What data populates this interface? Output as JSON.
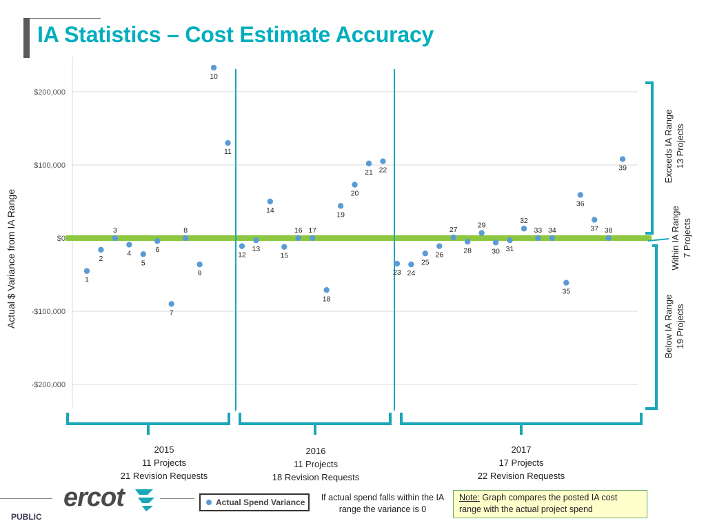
{
  "title": "IA Statistics – Cost Estimate Accuracy",
  "chart_data": {
    "type": "scatter",
    "title": "IA Statistics – Cost Estimate Accuracy",
    "ylabel": "Actual $ Variance from IA Range",
    "ylim": [
      -250000,
      245000
    ],
    "yticks": [
      200000,
      100000,
      0,
      -100000,
      -200000
    ],
    "ytick_labels": [
      "$200,000",
      "$100,000",
      "$0",
      "-$100,000",
      "-$200,000"
    ],
    "legend": "Actual Spend Variance",
    "series": [
      {
        "name": "Actual Spend Variance",
        "points": [
          {
            "id": "1",
            "y": -45000
          },
          {
            "id": "2",
            "y": -16000
          },
          {
            "id": "3",
            "y": 0
          },
          {
            "id": "4",
            "y": -9000
          },
          {
            "id": "5",
            "y": -22000
          },
          {
            "id": "6",
            "y": -4000
          },
          {
            "id": "7",
            "y": -90000
          },
          {
            "id": "8",
            "y": 0
          },
          {
            "id": "9",
            "y": -36000
          },
          {
            "id": "10",
            "y": 233000
          },
          {
            "id": "11",
            "y": 130000
          },
          {
            "id": "12",
            "y": -11000
          },
          {
            "id": "13",
            "y": -3000
          },
          {
            "id": "14",
            "y": 50000
          },
          {
            "id": "15",
            "y": -12000
          },
          {
            "id": "16",
            "y": 0
          },
          {
            "id": "17",
            "y": 0
          },
          {
            "id": "18",
            "y": -71000
          },
          {
            "id": "19",
            "y": 44000
          },
          {
            "id": "20",
            "y": 73000
          },
          {
            "id": "21",
            "y": 102000
          },
          {
            "id": "22",
            "y": 105000
          },
          {
            "id": "23",
            "y": -35000
          },
          {
            "id": "24",
            "y": -36000
          },
          {
            "id": "25",
            "y": -21000
          },
          {
            "id": "26",
            "y": -11000
          },
          {
            "id": "27",
            "y": 1000
          },
          {
            "id": "28",
            "y": -5000
          },
          {
            "id": "29",
            "y": 7000
          },
          {
            "id": "30",
            "y": -6000
          },
          {
            "id": "31",
            "y": -3000
          },
          {
            "id": "32",
            "y": 13000
          },
          {
            "id": "33",
            "y": 0
          },
          {
            "id": "34",
            "y": 0
          },
          {
            "id": "35",
            "y": -61000
          },
          {
            "id": "36",
            "y": 59000
          },
          {
            "id": "37",
            "y": 25000
          },
          {
            "id": "38",
            "y": 0
          },
          {
            "id": "39",
            "y": 108000
          }
        ]
      }
    ],
    "within_range_band": 0,
    "periods": [
      {
        "year": "2015",
        "projects": "11 Projects",
        "requests": "21 Revision Requests",
        "from": "1",
        "to": "11"
      },
      {
        "year": "2016",
        "projects": "11 Projects",
        "requests": "18 Revision Requests",
        "from": "12",
        "to": "22"
      },
      {
        "year": "2017",
        "projects": "17 Projects",
        "requests": "22 Revision Requests",
        "from": "23",
        "to": "39"
      }
    ]
  },
  "ranges": {
    "exceeds": {
      "label": "Exceeds IA Range",
      "count": "13 Projects"
    },
    "within": {
      "label": "Within IA Range",
      "count": "7 Projects"
    },
    "below": {
      "label": "Below IA Range",
      "count": "19 Projects"
    }
  },
  "footer": {
    "logo_text": "ercot",
    "classification": "PUBLIC",
    "legend_label": "Actual Spend Variance",
    "note_left": "If actual spend falls within the IA range the variance is 0",
    "note_label": "Note:",
    "note_text": " Graph compares the posted IA cost range with the actual project spend"
  },
  "colors": {
    "accent": "#00aebd",
    "point": "#5b9bd5",
    "band": "#8dc63f",
    "bracket": "#1aa7b8"
  }
}
